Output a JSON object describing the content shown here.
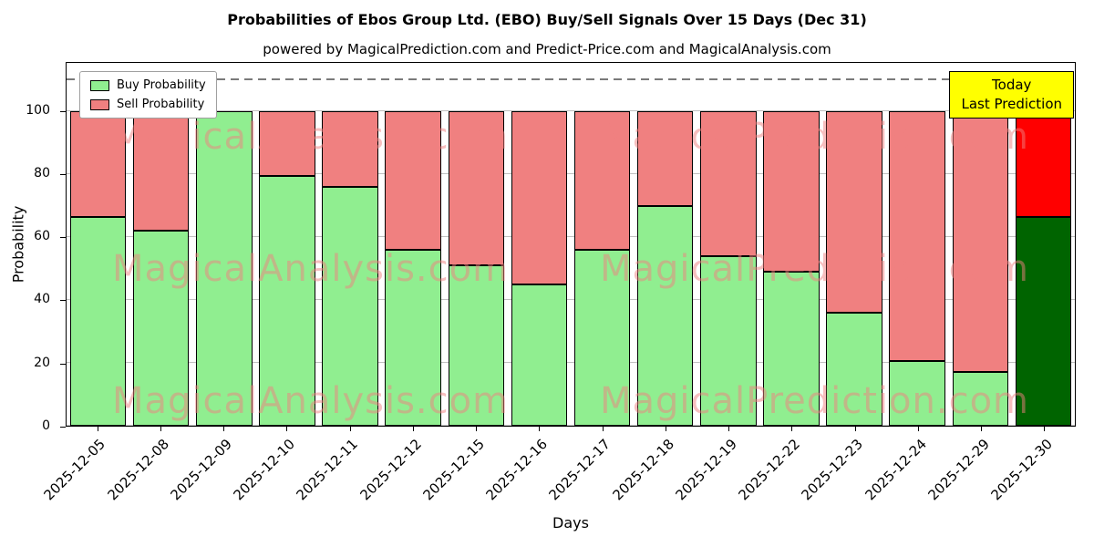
{
  "chart_data": {
    "type": "bar",
    "stacked": true,
    "title": "Probabilities of Ebos Group Ltd. (EBO) Buy/Sell Signals Over 15 Days (Dec 31)",
    "subtitle": "powered by MagicalPrediction.com and Predict-Price.com and MagicalAnalysis.com",
    "xlabel": "Days",
    "ylabel": "Probability",
    "ylim": [
      0,
      115.5
    ],
    "yticks": [
      0,
      20,
      40,
      60,
      80,
      100
    ],
    "dashed_line_y": 110,
    "grid": true,
    "grid_color": "#c0c0c0",
    "categories": [
      "2025-12-05",
      "2025-12-08",
      "2025-12-09",
      "2025-12-10",
      "2025-12-11",
      "2025-12-12",
      "2025-12-15",
      "2025-12-16",
      "2025-12-17",
      "2025-12-18",
      "2025-12-19",
      "2025-12-22",
      "2025-12-23",
      "2025-12-24",
      "2025-12-29",
      "2025-12-30"
    ],
    "series": [
      {
        "name": "Buy Probability",
        "color": "#90ee90",
        "values": [
          66.5,
          62,
          100,
          79.5,
          76,
          56,
          51,
          45,
          56,
          70,
          54,
          49,
          36,
          20.5,
          17,
          66.5
        ]
      },
      {
        "name": "Sell Probability",
        "color": "#f08080",
        "values": [
          33.5,
          38,
          0,
          20.5,
          24,
          44,
          49,
          55,
          44,
          30,
          46,
          51,
          64,
          79.5,
          83,
          33.5
        ]
      }
    ],
    "last_bar_colors": {
      "buy": "#006400",
      "sell": "#ff0000"
    },
    "bar_edge_color": "#000000",
    "legend_position": "top-left",
    "annotation_box": {
      "lines": [
        "Today",
        "Last Prediction"
      ],
      "bg_color": "#ffff00",
      "border_color": "#000000"
    },
    "watermarks": [
      "MagicalAnalysis.com",
      "MagicalPrediction.com"
    ],
    "watermark_color": "rgba(240,128,128,0.5)"
  }
}
